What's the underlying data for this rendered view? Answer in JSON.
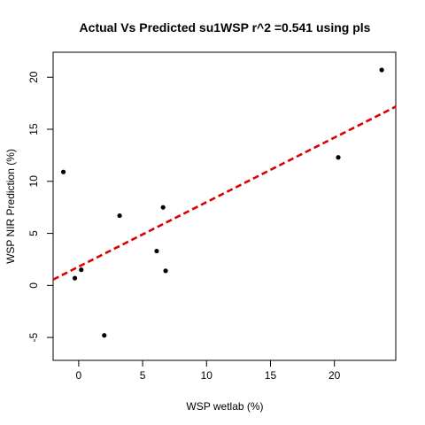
{
  "chart_data": {
    "type": "scatter",
    "title": "Actual Vs Predicted su1WSP r^2 =0.541 using pls",
    "xlabel": "WSP wetlab (%)",
    "ylabel": "WSP NIR Prediction (%)",
    "xlim": [
      -2.0,
      24.8
    ],
    "ylim": [
      -7.2,
      22.4
    ],
    "xticks": [
      0,
      5,
      10,
      15,
      20
    ],
    "yticks": [
      -5,
      0,
      5,
      10,
      15,
      20
    ],
    "grid": false,
    "points": [
      {
        "x": -1.2,
        "y": 10.9
      },
      {
        "x": -0.3,
        "y": 0.7
      },
      {
        "x": 0.2,
        "y": 1.5
      },
      {
        "x": 2.0,
        "y": -4.8
      },
      {
        "x": 3.2,
        "y": 6.7
      },
      {
        "x": 6.1,
        "y": 3.3
      },
      {
        "x": 6.6,
        "y": 7.5
      },
      {
        "x": 6.8,
        "y": 1.4
      },
      {
        "x": 20.3,
        "y": 12.3
      },
      {
        "x": 23.7,
        "y": 20.7
      }
    ],
    "fit_line": {
      "color": "#dd0000",
      "style": "dashed",
      "intercept": 1.8,
      "slope": 0.62
    },
    "point_color": "#000000"
  }
}
